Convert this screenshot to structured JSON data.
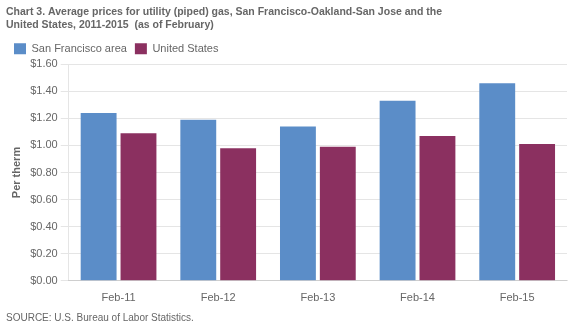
{
  "chart_data": {
    "type": "bar",
    "title": [
      "Chart 3. Average prices for utility (piped) gas, San Francisco-Oakland-San Jose and the",
      "United States, 2011-2015  (as of February)"
    ],
    "ylabel": "Per therm",
    "annotations": [
      "SOURCE: U.S. Bureau of Labor Statistics."
    ],
    "categories": [
      "Feb-11",
      "Feb-12",
      "Feb-13",
      "Feb-14",
      "Feb-15"
    ],
    "series": [
      {
        "name": "San Francisco area",
        "color": "#5B8DC8",
        "values": [
          1.24,
          1.19,
          1.14,
          1.33,
          1.46
        ]
      },
      {
        "name": "United States",
        "color": "#8B3060",
        "values": [
          1.09,
          0.98,
          0.99,
          1.07,
          1.01
        ]
      }
    ],
    "ylim": [
      0.0,
      1.6
    ],
    "yticks": [
      {
        "value": 0.0,
        "label": "$0.00"
      },
      {
        "value": 0.2,
        "label": "$0.20"
      },
      {
        "value": 0.4,
        "label": "$0.40"
      },
      {
        "value": 0.6,
        "label": "$0.60"
      },
      {
        "value": 0.8,
        "label": "$0.80"
      },
      {
        "value": 1.0,
        "label": "$1.00"
      },
      {
        "value": 1.2,
        "label": "$1.20"
      },
      {
        "value": 1.4,
        "label": "$1.40"
      },
      {
        "value": 1.6,
        "label": "$1.60"
      }
    ],
    "grid": true,
    "legend": "upper left"
  }
}
